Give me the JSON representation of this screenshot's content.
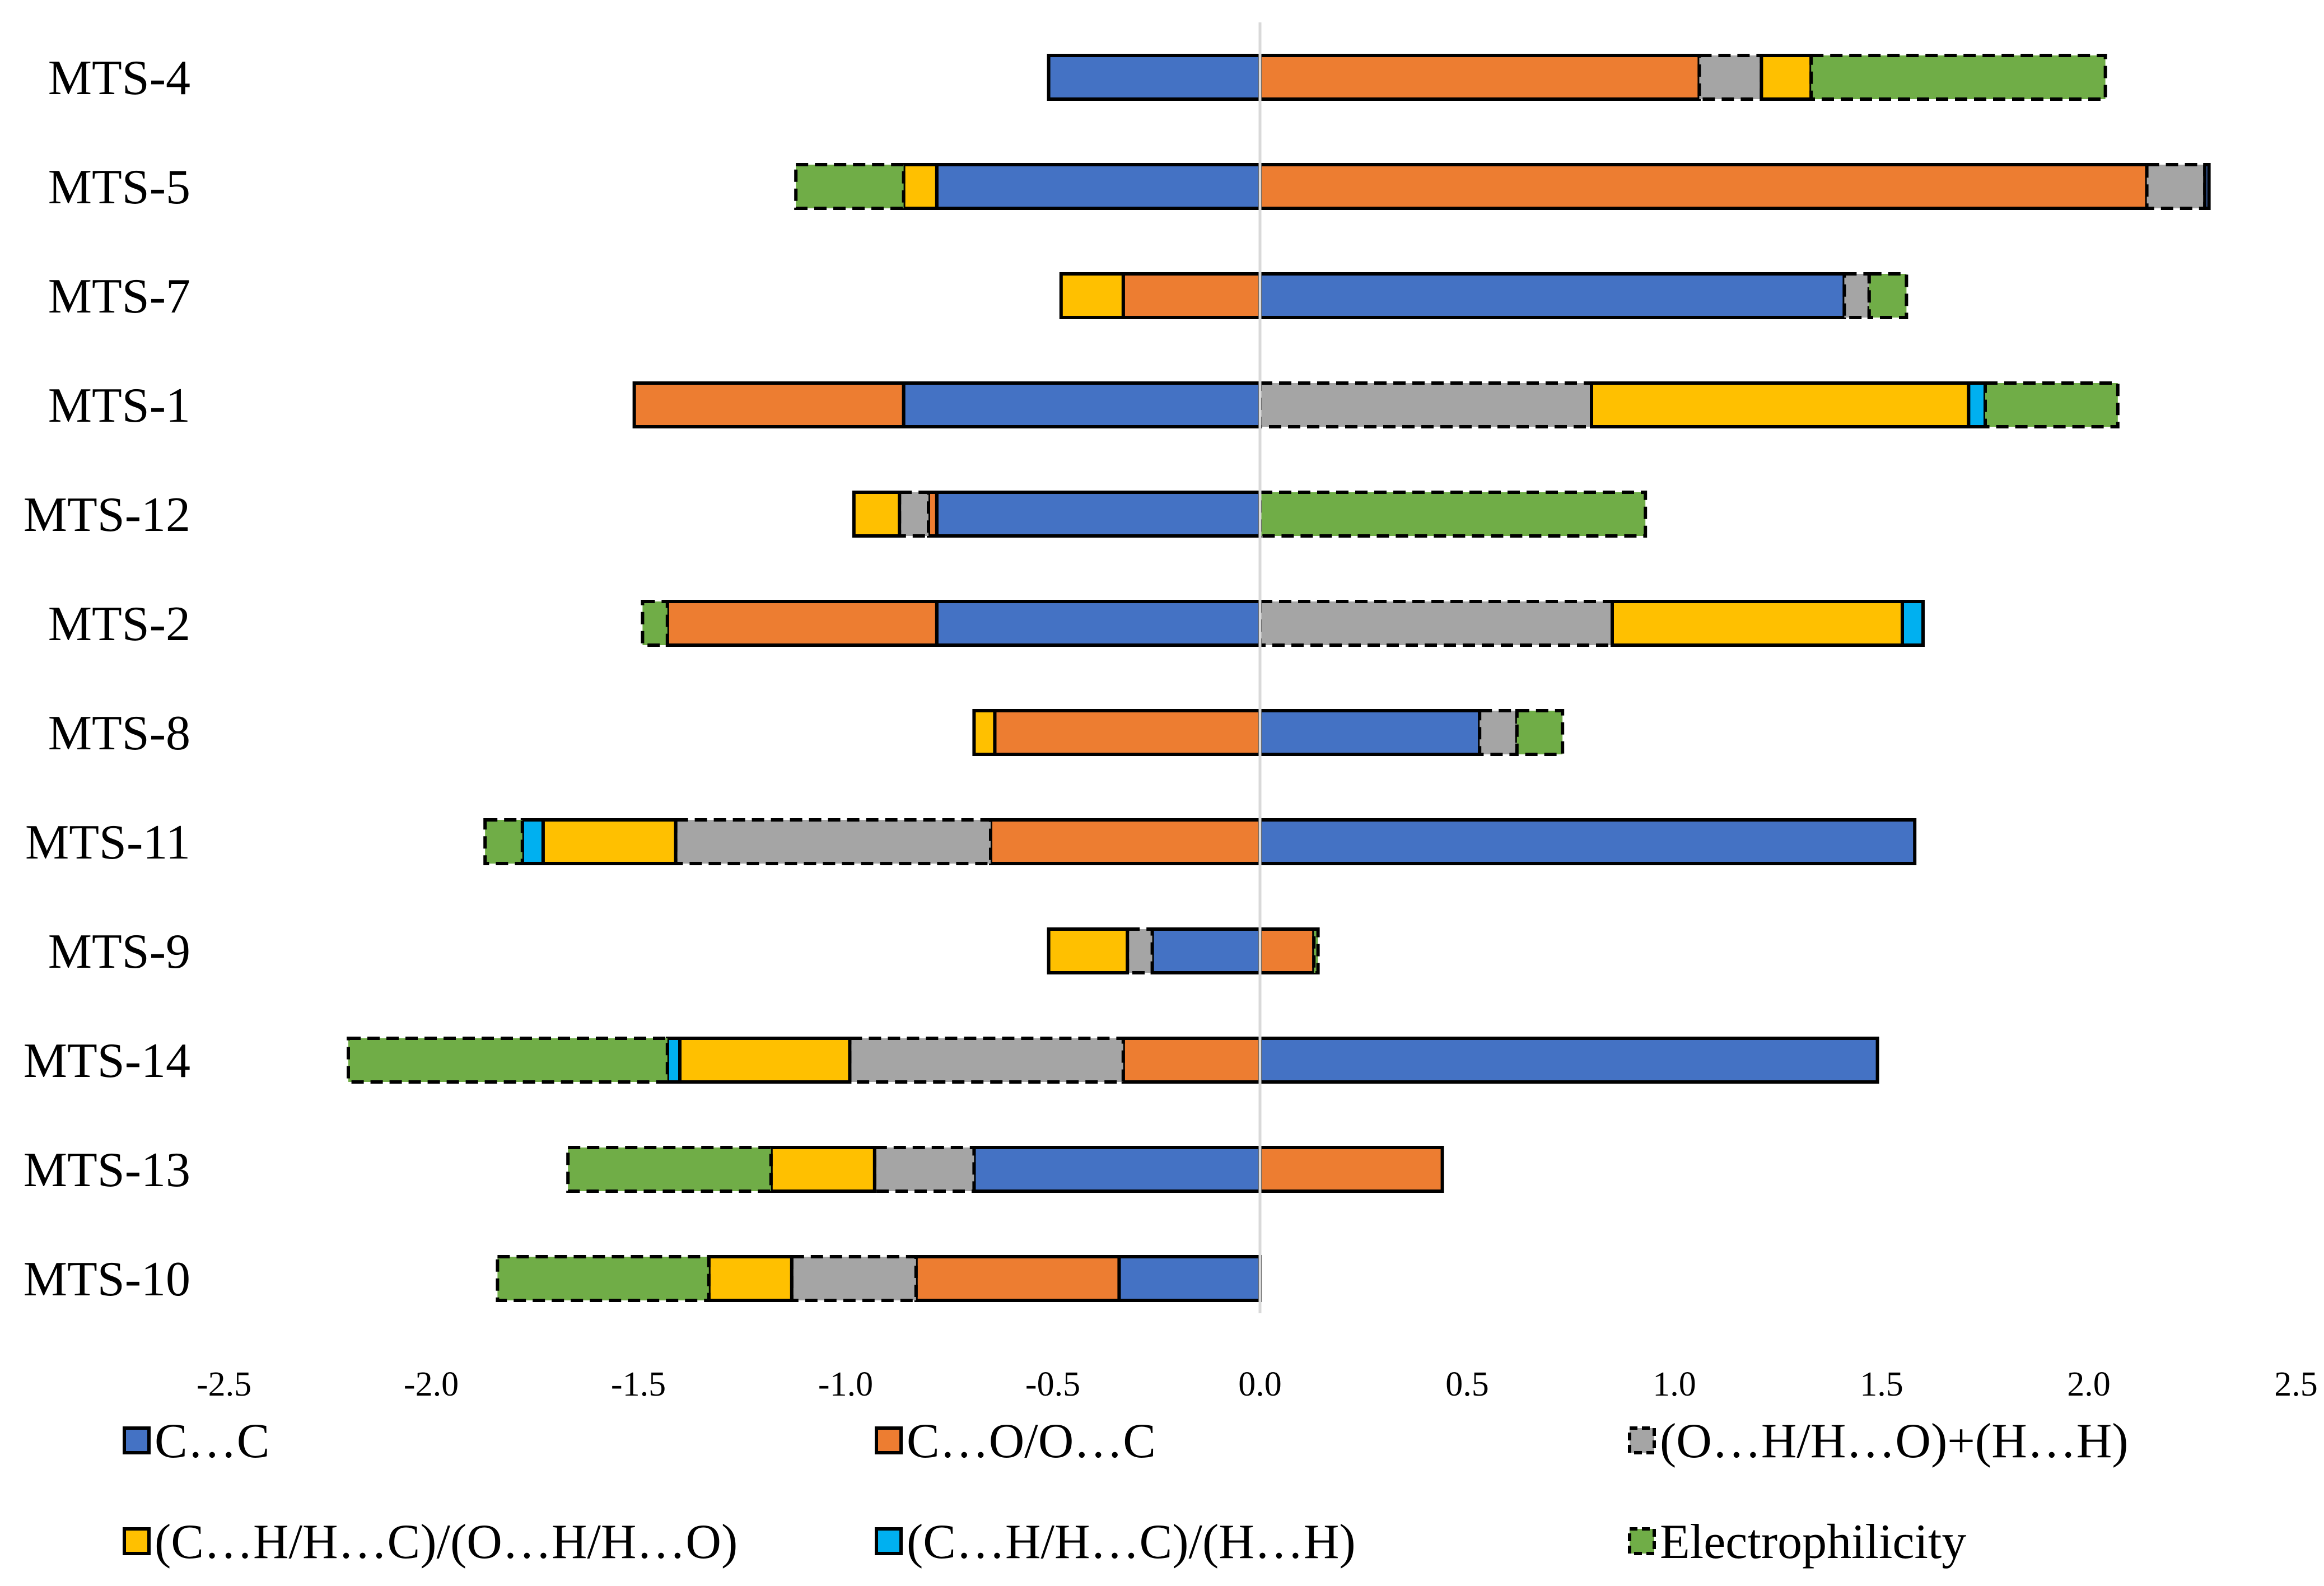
{
  "chart_data": {
    "type": "bar",
    "orientation": "horizontal-stacked-diverging",
    "title": "",
    "xlabel": "",
    "ylabel": "",
    "xlim": [
      -2.5,
      2.5
    ],
    "x_ticks": [
      "-2.5",
      "-2.0",
      "-1.5",
      "-1.0",
      "-0.5",
      "0.0",
      "0.5",
      "1.0",
      "1.5",
      "2.0",
      "2.5"
    ],
    "x_tick_values": [
      -2.5,
      -2.0,
      -1.5,
      -1.0,
      -0.5,
      0.0,
      0.5,
      1.0,
      1.5,
      2.0,
      2.5
    ],
    "grid": false,
    "legend_position": "bottom",
    "categories": [
      "MTS-4",
      "MTS-5",
      "MTS-7",
      "MTS-1",
      "MTS-12",
      "MTS-2",
      "MTS-8",
      "MTS-11",
      "MTS-9",
      "MTS-14",
      "MTS-13",
      "MTS-10"
    ],
    "series": [
      {
        "key": "cc",
        "name": "C…C",
        "color": "#4472C4",
        "dashed": false
      },
      {
        "key": "co",
        "name": "C…O/O…C",
        "color": "#ED7D31",
        "dashed": false
      },
      {
        "key": "oh",
        "name": "(O…H/H…O)+(H…H)",
        "color": "#A5A5A5",
        "dashed": true
      },
      {
        "key": "ch",
        "name": "(C…H/H…C)/(O…H/H…O)",
        "color": "#FFC000",
        "dashed": false
      },
      {
        "key": "chh",
        "name": "(C…H/H…C)/(H…H)",
        "color": "#00B0F0",
        "dashed": false
      },
      {
        "key": "el",
        "name": "Electrophilicity",
        "color": "#70AD47",
        "dashed": true
      }
    ],
    "bars": [
      {
        "category": "MTS-4",
        "segments": [
          {
            "s": "cc",
            "v": -0.51
          },
          {
            "s": "co",
            "v": 1.06
          },
          {
            "s": "oh",
            "v": 0.15
          },
          {
            "s": "ch",
            "v": 0.12
          },
          {
            "s": "el",
            "v": 0.71
          }
        ]
      },
      {
        "category": "MTS-5",
        "segments": [
          {
            "s": "cc",
            "v": -0.78
          },
          {
            "s": "ch",
            "v": -0.08
          },
          {
            "s": "el",
            "v": -0.26
          },
          {
            "s": "co",
            "v": 2.14
          },
          {
            "s": "oh",
            "v": 0.14
          },
          {
            "s": "cc",
            "v": 0.01
          }
        ]
      },
      {
        "category": "MTS-7",
        "segments": [
          {
            "s": "co",
            "v": -0.33
          },
          {
            "s": "ch",
            "v": -0.15
          },
          {
            "s": "cc",
            "v": 1.41
          },
          {
            "s": "oh",
            "v": 0.06
          },
          {
            "s": "el",
            "v": 0.09
          }
        ]
      },
      {
        "category": "MTS-1",
        "segments": [
          {
            "s": "cc",
            "v": -0.86
          },
          {
            "s": "co",
            "v": -0.65
          },
          {
            "s": "oh",
            "v": 0.8
          },
          {
            "s": "ch",
            "v": 0.91
          },
          {
            "s": "chh",
            "v": 0.04
          },
          {
            "s": "el",
            "v": 0.32
          }
        ]
      },
      {
        "category": "MTS-12",
        "segments": [
          {
            "s": "cc",
            "v": -0.78
          },
          {
            "s": "co",
            "v": -0.02
          },
          {
            "s": "oh",
            "v": -0.07
          },
          {
            "s": "ch",
            "v": -0.11
          },
          {
            "s": "el",
            "v": 0.93
          }
        ]
      },
      {
        "category": "MTS-2",
        "segments": [
          {
            "s": "cc",
            "v": -0.78
          },
          {
            "s": "co",
            "v": -0.65
          },
          {
            "s": "el",
            "v": -0.06
          },
          {
            "s": "oh",
            "v": 0.85
          },
          {
            "s": "ch",
            "v": 0.7
          },
          {
            "s": "chh",
            "v": 0.05
          }
        ]
      },
      {
        "category": "MTS-8",
        "segments": [
          {
            "s": "co",
            "v": -0.64
          },
          {
            "s": "ch",
            "v": -0.05
          },
          {
            "s": "cc",
            "v": 0.53
          },
          {
            "s": "oh",
            "v": 0.09
          },
          {
            "s": "el",
            "v": 0.11
          }
        ]
      },
      {
        "category": "MTS-11",
        "segments": [
          {
            "s": "co",
            "v": -0.65
          },
          {
            "s": "oh",
            "v": -0.76
          },
          {
            "s": "ch",
            "v": -0.32
          },
          {
            "s": "chh",
            "v": -0.05
          },
          {
            "s": "el",
            "v": -0.09
          },
          {
            "s": "cc",
            "v": 1.58
          }
        ]
      },
      {
        "category": "MTS-9",
        "segments": [
          {
            "s": "cc",
            "v": -0.26
          },
          {
            "s": "oh",
            "v": -0.06
          },
          {
            "s": "ch",
            "v": -0.19
          },
          {
            "s": "co",
            "v": 0.13
          },
          {
            "s": "el",
            "v": 0.01
          }
        ]
      },
      {
        "category": "MTS-14",
        "segments": [
          {
            "s": "co",
            "v": -0.33
          },
          {
            "s": "oh",
            "v": -0.66
          },
          {
            "s": "ch",
            "v": -0.41
          },
          {
            "s": "chh",
            "v": -0.03
          },
          {
            "s": "el",
            "v": -0.77
          },
          {
            "s": "cc",
            "v": 1.49
          }
        ]
      },
      {
        "category": "MTS-13",
        "segments": [
          {
            "s": "cc",
            "v": -0.69
          },
          {
            "s": "oh",
            "v": -0.24
          },
          {
            "s": "ch",
            "v": -0.25
          },
          {
            "s": "el",
            "v": -0.49
          },
          {
            "s": "co",
            "v": 0.44
          }
        ]
      },
      {
        "category": "MTS-10",
        "segments": [
          {
            "s": "cc",
            "v": -0.34
          },
          {
            "s": "co",
            "v": -0.49
          },
          {
            "s": "oh",
            "v": -0.3
          },
          {
            "s": "ch",
            "v": -0.2
          },
          {
            "s": "el",
            "v": -0.51
          }
        ]
      }
    ]
  }
}
